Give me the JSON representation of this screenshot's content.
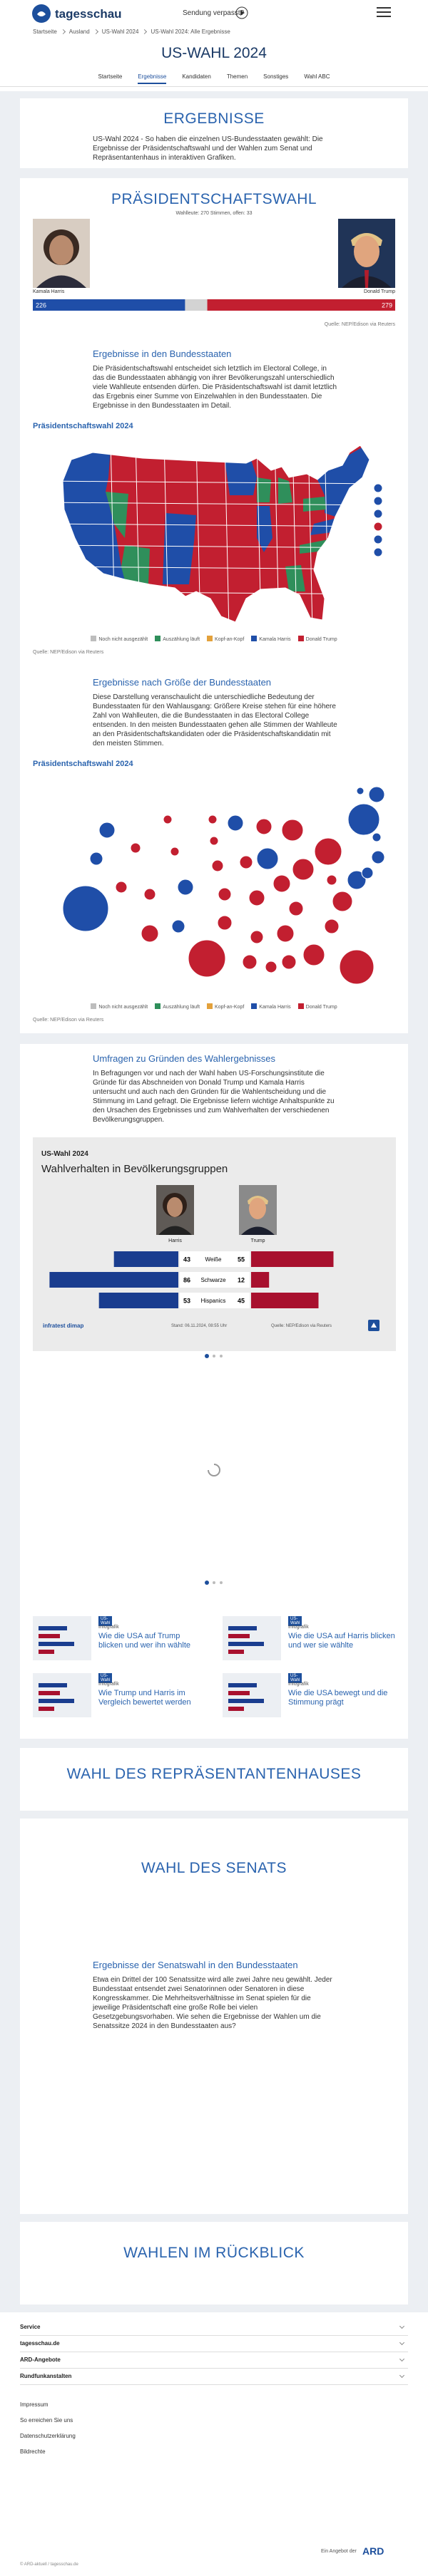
{
  "header": {
    "logo": "tagesschau",
    "missed": "Sendung verpasst?"
  },
  "breadcrumb": [
    "Startseite",
    "Ausland",
    "US-Wahl 2024",
    "US-Wahl 2024: Alle Ergebnisse"
  ],
  "page_title": "US-WAHL 2024",
  "nav": [
    "Startseite",
    "Ergebnisse",
    "Kandidaten",
    "Themen",
    "Sonstiges",
    "Wahl ABC"
  ],
  "intro": {
    "title": "ERGEBNISSE",
    "text": "US-Wahl 2024 - So haben die einzelnen US-Bundesstaaten gewählt: Die Ergebnisse der Präsidentschaftswahl und der Wahlen zum Senat und Repräsentantenhaus in interaktiven Grafiken."
  },
  "president": {
    "title": "PRÄSIDENTSCHAFTSWAHL",
    "subtitle": "Wahlleute: 270 Stimmen, offen:",
    "open": 33,
    "candidates": [
      {
        "name": "Kamala Harris",
        "votes": 226,
        "color": "#1f4ea8"
      },
      {
        "name": "Donald Trump",
        "votes": 279,
        "color": "#c21f30"
      }
    ],
    "open_color": "#d3d3d3",
    "source": "Quelle: NEP/Edison via Reuters"
  },
  "states_map": {
    "title": "Ergebnisse in den Bundesstaaten",
    "text": "Die Präsidentschaftswahl entscheidet sich letztlich im Electoral College, in das die Bundesstaaten abhängig von ihrer Bevölkerungszahl unterschiedlich viele Wahlleute entsenden dürfen. Die Präsidentschaftswahl ist damit letztlich das Ergebnis einer Summe von Einzelwahlen in den Bundesstaaten. Die Ergebnisse in den Bundesstaaten im Detail.",
    "chart_label": "Präsidentschaftswahl 2024",
    "legend": [
      {
        "name": "Noch nicht ausgezählt",
        "color": "#bdbdbd"
      },
      {
        "name": "Auszählung läuft",
        "color": "#2f8f5b"
      },
      {
        "name": "Kopf-an-Kopf",
        "color": "#e3a13b"
      },
      {
        "name": "Kamala Harris",
        "color": "#1f4ea8"
      },
      {
        "name": "Donald Trump",
        "color": "#c21f30"
      }
    ],
    "source": "Quelle: NEP/Edison via Reuters"
  },
  "size_map": {
    "title": "Ergebnisse nach Größe der Bundesstaaten",
    "text": "Diese Darstellung veranschaulicht die unterschiedliche Bedeutung der Bundesstaaten für den Wahlausgang: Größere Kreise stehen für eine höhere Zahl von Wahlleuten, die die Bundesstaaten in das Electoral College entsenden. In den meisten Bundesstaaten gehen alle Stimmen der Wahlleute an den Präsidentschaftskandidaten oder die Präsidentschaftskandidatin mit den meisten Stimmen.",
    "chart_label": "Präsidentschaftswahl 2024",
    "legend": [
      {
        "name": "Noch nicht ausgezählt",
        "color": "#bdbdbd"
      },
      {
        "name": "Auszählung läuft",
        "color": "#2f8f5b"
      },
      {
        "name": "Kopf-an-Kopf",
        "color": "#e3a13b"
      },
      {
        "name": "Kamala Harris",
        "color": "#1f4ea8"
      },
      {
        "name": "Donald Trump",
        "color": "#c21f30"
      }
    ],
    "source": "Quelle: NEP/Edison via Reuters"
  },
  "polls": {
    "title": "Umfragen zu Gründen des Wahlergebnisses",
    "text": "In Befragungen vor und nach der Wahl haben US-Forschungsinstitute die Gründe für das Abschneiden von Donald Trump und Kamala Harris untersucht und auch nach den Gründen für die Wahlentscheidung und die Stimmung im Land gefragt. Die Ergebnisse liefern wichtige Anhaltspunkte zu den Ursachen des Ergebnisses und zum Wahlverhalten der verschiedenen Bevölkerungsgruppen.",
    "infographic": {
      "kicker": "US-Wahl 2024",
      "title": "Wahlverhalten in Bevölkerungsgruppen",
      "candidates": [
        {
          "name": "Harris",
          "color": "#1a3d8f"
        },
        {
          "name": "Trump",
          "color": "#a8102e"
        }
      ],
      "rows": [
        {
          "group": "Weiße",
          "values": [
            43,
            55
          ]
        },
        {
          "group": "Schwarze",
          "values": [
            86,
            12
          ]
        },
        {
          "group": "Hispanics",
          "values": [
            53,
            45
          ]
        }
      ],
      "brand": "infratest dimap",
      "date": "Stand: 06.11.2024, 08:55 Uhr",
      "source": "Quelle: NEP/Edison via Reuters"
    },
    "teasers": [
      {
        "tag": "US-Wahl",
        "kicker": "Infografik",
        "title": "Wie die USA auf Trump blicken und wer ihn wählte"
      },
      {
        "tag": "US-Wahl",
        "kicker": "Infografik",
        "title": "Wie die USA auf Harris blicken und wer sie wählte"
      },
      {
        "tag": "US-Wahl",
        "kicker": "Infografik",
        "title": "Wie Trump und Harris im Vergleich bewertet werden"
      },
      {
        "tag": "US-Wahl",
        "kicker": "Infografik",
        "title": "Wie die USA bewegt und die Stimmung prägt"
      }
    ]
  },
  "house": {
    "title": "WAHL DES REPRÄSENTANTENHAUSES"
  },
  "senate": {
    "title": "WAHL DES SENATS",
    "subtitle": "Ergebnisse der Senatswahl in den Bundesstaaten",
    "text": "Etwa ein Drittel der 100 Senatssitze wird alle zwei Jahre neu gewählt. Jeder Bundesstaat entsendet zwei Senatorinnen oder Senatoren in diese Kongresskammer. Die Mehrheitsverhältnisse im Senat spielen für die jeweilige Präsidentschaft eine große Rolle bei vielen Gesetzgebungsvorhaben. Wie sehen die Ergebnisse der Wahlen um die Senatssitze 2024 in den Bundesstaaten aus?"
  },
  "history": {
    "title": "WAHLEN IM RÜCKBLICK"
  },
  "footer": {
    "sections": [
      "Service",
      "tagesschau.de",
      "ARD-Angebote",
      "Rundfunkanstalten"
    ],
    "links": [
      "Impressum",
      "So erreichen Sie uns",
      "Datenschutzerklärung",
      "Bildrechte"
    ],
    "offer": "Ein Angebot der",
    "ard": "ARD",
    "copyright": "© ARD-aktuell / tagesschau.de"
  }
}
